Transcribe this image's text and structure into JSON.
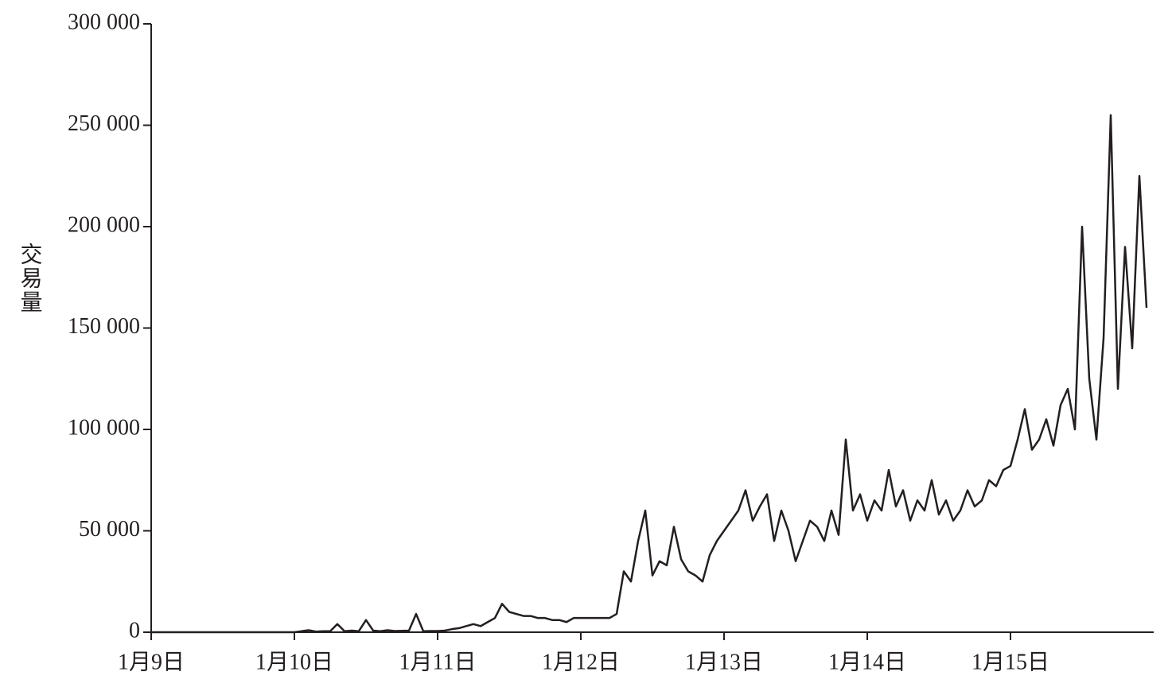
{
  "chart_data": {
    "type": "line",
    "y_label": "交易量",
    "color": "#231f20",
    "xlim": [
      0,
      7
    ],
    "ylim": [
      0,
      300000
    ],
    "xticks": [
      {
        "value": 0,
        "label": "1月9日"
      },
      {
        "value": 1,
        "label": "1月10日"
      },
      {
        "value": 2,
        "label": "1月11日"
      },
      {
        "value": 3,
        "label": "1月12日"
      },
      {
        "value": 4,
        "label": "1月13日"
      },
      {
        "value": 5,
        "label": "1月14日"
      },
      {
        "value": 6,
        "label": "1月15日"
      }
    ],
    "yticks": [
      0,
      {
        "value": 50000,
        "label": "50 000"
      },
      {
        "value": 100000,
        "label": "100 000"
      },
      {
        "value": 150000,
        "label": "150 000"
      },
      {
        "value": 200000,
        "label": "200 000"
      },
      {
        "value": 250000,
        "label": "250 000"
      },
      {
        "value": 300000,
        "label": "300 000"
      }
    ],
    "x": [
      0,
      0.05,
      0.1,
      0.15,
      0.2,
      0.25,
      0.3,
      0.35,
      0.4,
      0.45,
      0.5,
      0.55,
      0.6,
      0.65,
      0.7,
      0.75,
      0.8,
      0.85,
      0.9,
      0.95,
      1,
      1.05,
      1.1,
      1.15,
      1.2,
      1.25,
      1.3,
      1.35,
      1.4,
      1.45,
      1.5,
      1.55,
      1.6,
      1.65,
      1.7,
      1.75,
      1.8,
      1.85,
      1.9,
      1.95,
      2,
      2.05,
      2.1,
      2.15,
      2.2,
      2.25,
      2.3,
      2.35,
      2.4,
      2.45,
      2.5,
      2.55,
      2.6,
      2.65,
      2.7,
      2.75,
      2.8,
      2.85,
      2.9,
      2.95,
      3,
      3.05,
      3.1,
      3.15,
      3.2,
      3.25,
      3.3,
      3.35,
      3.4,
      3.45,
      3.5,
      3.55,
      3.6,
      3.65,
      3.7,
      3.75,
      3.8,
      3.85,
      3.9,
      3.95,
      4,
      4.05,
      4.1,
      4.15,
      4.2,
      4.25,
      4.3,
      4.35,
      4.4,
      4.45,
      4.5,
      4.55,
      4.6,
      4.65,
      4.7,
      4.75,
      4.8,
      4.85,
      4.9,
      4.95,
      5,
      5.05,
      5.1,
      5.15,
      5.2,
      5.25,
      5.3,
      5.35,
      5.4,
      5.45,
      5.5,
      5.55,
      5.6,
      5.65,
      5.7,
      5.75,
      5.8,
      5.85,
      5.9,
      5.95,
      6,
      6.05,
      6.1,
      6.15,
      6.2,
      6.25,
      6.3,
      6.35,
      6.4,
      6.45,
      6.5,
      6.55,
      6.6,
      6.65,
      6.7,
      6.75,
      6.8,
      6.85,
      6.9,
      6.95
    ],
    "values": [
      0,
      0,
      0,
      0,
      0,
      0,
      0,
      0,
      0,
      0,
      0,
      0,
      0,
      0,
      0,
      0,
      0,
      0,
      0,
      0,
      0,
      500,
      1000,
      300,
      500,
      500,
      4000,
      500,
      800,
      500,
      6000,
      800,
      500,
      1000,
      600,
      700,
      800,
      9000,
      500,
      600,
      600,
      800,
      1500,
      2000,
      3000,
      4000,
      3000,
      5000,
      7000,
      14000,
      10000,
      9000,
      8000,
      8000,
      7000,
      7000,
      6000,
      6000,
      5000,
      7000,
      7000,
      7000,
      7000,
      7000,
      7000,
      9000,
      30000,
      25000,
      45000,
      60000,
      28000,
      35000,
      33000,
      52000,
      36000,
      30000,
      28000,
      25000,
      38000,
      45000,
      50000,
      55000,
      60000,
      70000,
      55000,
      62000,
      68000,
      45000,
      60000,
      50000,
      35000,
      45000,
      55000,
      52000,
      45000,
      60000,
      48000,
      95000,
      60000,
      68000,
      55000,
      65000,
      60000,
      80000,
      62000,
      70000,
      55000,
      65000,
      60000,
      75000,
      58000,
      65000,
      55000,
      60000,
      70000,
      62000,
      65000,
      75000,
      72000,
      80000,
      82000,
      95000,
      110000,
      90000,
      95000,
      105000,
      92000,
      112000,
      120000,
      100000,
      200000,
      125000,
      95000,
      145000,
      255000,
      120000,
      190000,
      140000,
      225000,
      160000
    ]
  }
}
